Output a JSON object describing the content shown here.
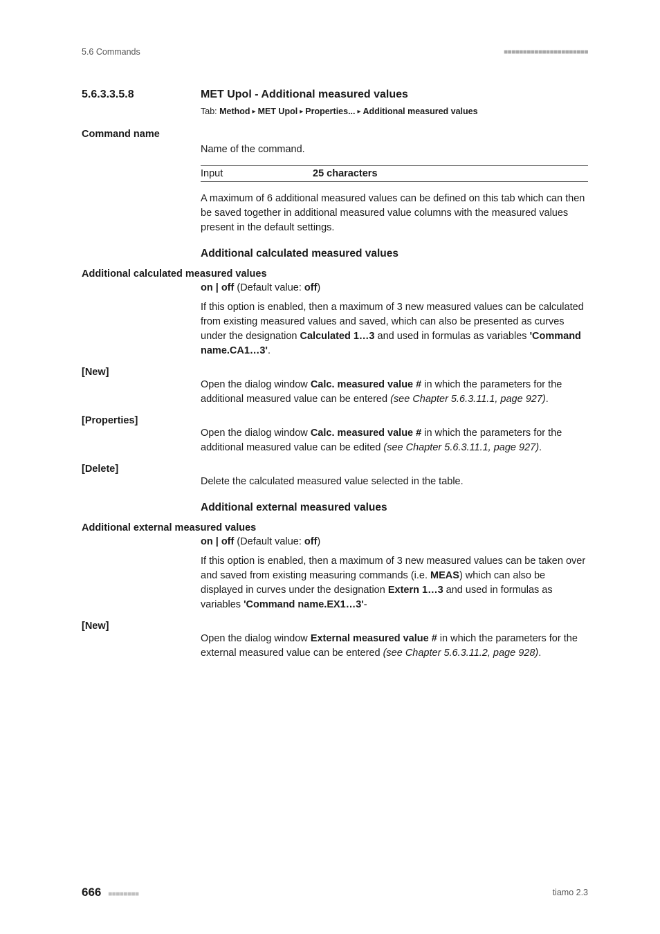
{
  "header": {
    "left": "5.6 Commands",
    "squares": "■■■■■■■■■■■■■■■■■■■■■■"
  },
  "section": {
    "number": "5.6.3.3.5.8",
    "title": "MET Upol - Additional measured values",
    "breadcrumb_prefix": "Tab: ",
    "crumbs": [
      "Method",
      "MET Upol",
      "Properties...",
      "Additional measured values"
    ]
  },
  "command_name": {
    "label": "Command name",
    "desc": "Name of the command.",
    "input_label": "Input",
    "input_value": "25 characters",
    "help": "A maximum of 6 additional measured values can be defined on this tab which can then be saved together in additional measured value columns with the measured values present in the default settings."
  },
  "calc": {
    "heading": "Additional calculated measured values",
    "field_label": "Additional calculated measured values",
    "onoff_prefix": "on | off",
    "onoff_mid": " (Default value: ",
    "onoff_val": "off",
    "onoff_suffix": ")",
    "para1_a": "If this option is enabled, then a maximum of 3 new measured values can be calculated from existing measured values and saved, which can also be presented as curves under the designation ",
    "para1_b": "Calculated 1…3",
    "para1_c": " and used in formulas as variables ",
    "para1_d": "'Command name.CA1…3'",
    "para1_e": ".",
    "new_label": "[New]",
    "new_a": "Open the dialog window ",
    "new_b": "Calc. measured value #",
    "new_c": " in which the parameters for the additional measured value can be entered ",
    "new_d": "(see Chapter 5.6.3.11.1, page 927)",
    "new_e": ".",
    "prop_label": "[Properties]",
    "prop_a": "Open the dialog window ",
    "prop_b": "Calc. measured value #",
    "prop_c": " in which the parameters for the additional measured value can be edited ",
    "prop_d": "(see Chapter 5.6.3.11.1, page 927)",
    "prop_e": ".",
    "del_label": "[Delete]",
    "del_text": "Delete the calculated measured value selected in the table."
  },
  "ext": {
    "heading": "Additional external measured values",
    "field_label": "Additional external measured values",
    "onoff_prefix": "on | off",
    "onoff_mid": " (Default value: ",
    "onoff_val": "off",
    "onoff_suffix": ")",
    "para1_a": "If this option is enabled, then a maximum of 3 new measured values can be taken over and saved from existing measuring commands (i.e. ",
    "para1_b": "MEAS",
    "para1_c": ") which can also be displayed in curves under the designation ",
    "para1_d": "Extern 1…3",
    "para1_e": " and used in formulas as variables ",
    "para1_f": "'Command name.EX1…3'",
    "para1_g": "-",
    "new_label": "[New]",
    "new_a": "Open the dialog window ",
    "new_b": "External measured value #",
    "new_c": " in which the parameters for the external measured value can be entered ",
    "new_d": "(see Chapter 5.6.3.11.2, page 928)",
    "new_e": "."
  },
  "footer": {
    "page": "666",
    "squares": "■■■■■■■■",
    "right": "tiamo 2.3"
  },
  "colors": {
    "text": "#1a1a1a",
    "muted": "#555555",
    "squares": "#a9a9a9"
  }
}
